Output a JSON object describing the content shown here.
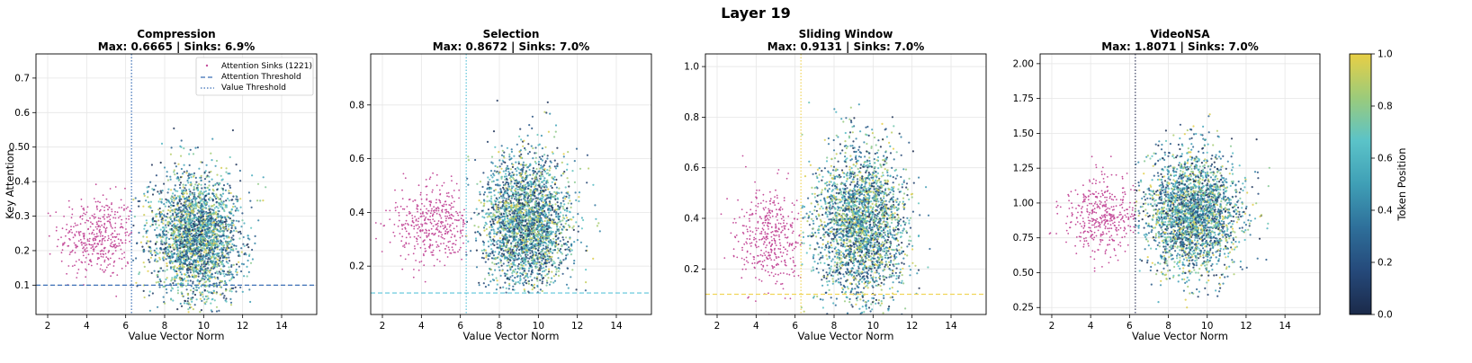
{
  "figure_title": "Layer 19",
  "chart_data": [
    {
      "type": "scatter",
      "title": "Compression",
      "subtitle": "Max: 0.6665 | Sinks: 6.9%",
      "xlabel": "Value Vector Norm",
      "ylabel": "Key Attention",
      "xlim": [
        1.4,
        15.8
      ],
      "ylim": [
        0.015,
        0.77
      ],
      "xticks": [
        2,
        4,
        6,
        8,
        10,
        12,
        14
      ],
      "yticks": [
        0.1,
        0.2,
        0.3,
        0.4,
        0.5,
        0.6,
        0.7
      ],
      "grid": true,
      "attention_threshold": 0.1,
      "value_threshold": 6.3,
      "threshold_color": "#3b6fb6",
      "sinks": {
        "x_range": [
          1.5,
          6.3
        ],
        "center": [
          4.6,
          0.24
        ],
        "spread": [
          1.0,
          0.06
        ],
        "color": "#c44d9a"
      },
      "cluster": {
        "center": [
          9.6,
          0.24
        ],
        "spread": [
          1.15,
          0.09
        ],
        "x_range": [
          6.3,
          13.2
        ],
        "y_range": [
          0.02,
          0.67
        ]
      },
      "legend": {
        "placement": "upper right",
        "entries": [
          "Attention Sinks (1221)",
          "Attention Threshold",
          "Value Threshold"
        ]
      }
    },
    {
      "type": "scatter",
      "title": "Selection",
      "subtitle": "Max: 0.8672 | Sinks: 7.0%",
      "xlabel": "Value Vector Norm",
      "ylabel": "",
      "xlim": [
        1.4,
        15.8
      ],
      "ylim": [
        0.02,
        0.99
      ],
      "xticks": [
        2,
        4,
        6,
        8,
        10,
        12,
        14
      ],
      "yticks": [
        0.2,
        0.4,
        0.6,
        0.8
      ],
      "grid": true,
      "attention_threshold": 0.1,
      "value_threshold": 6.3,
      "threshold_color": "#5bc3d9",
      "sinks": {
        "x_range": [
          1.5,
          6.3
        ],
        "center": [
          4.6,
          0.36
        ],
        "spread": [
          1.0,
          0.07
        ],
        "color": "#c44d9a"
      },
      "cluster": {
        "center": [
          9.4,
          0.36
        ],
        "spread": [
          1.1,
          0.13
        ],
        "x_range": [
          6.3,
          13.3
        ],
        "y_range": [
          0.1,
          0.87
        ]
      }
    },
    {
      "type": "scatter",
      "title": "Sliding Window",
      "subtitle": "Max: 0.9131 | Sinks: 7.0%",
      "xlabel": "Value Vector Norm",
      "ylabel": "",
      "xlim": [
        1.4,
        15.8
      ],
      "ylim": [
        0.02,
        1.05
      ],
      "xticks": [
        2,
        4,
        6,
        8,
        10,
        12,
        14
      ],
      "yticks": [
        0.2,
        0.4,
        0.6,
        0.8,
        1.0
      ],
      "grid": true,
      "attention_threshold": 0.1,
      "value_threshold": 6.3,
      "threshold_color": "#f0d55a",
      "sinks": {
        "x_range": [
          1.5,
          6.3
        ],
        "center": [
          4.8,
          0.32
        ],
        "spread": [
          0.9,
          0.1
        ],
        "color": "#c44d9a"
      },
      "cluster": {
        "center": [
          9.3,
          0.38
        ],
        "spread": [
          1.2,
          0.15
        ],
        "x_range": [
          6.3,
          13.0
        ],
        "y_range": [
          0.02,
          0.92
        ]
      }
    },
    {
      "type": "scatter",
      "title": "VideoNSA",
      "subtitle": "Max: 1.8071 | Sinks: 7.0%",
      "xlabel": "Value Vector Norm",
      "ylabel": "",
      "xlim": [
        1.4,
        15.8
      ],
      "ylim": [
        0.2,
        2.07
      ],
      "xticks": [
        2,
        4,
        6,
        8,
        10,
        12,
        14
      ],
      "yticks": [
        0.25,
        0.5,
        0.75,
        1.0,
        1.25,
        1.5,
        1.75,
        2.0
      ],
      "grid": true,
      "attention_threshold": null,
      "value_threshold": 6.3,
      "threshold_color": "#3a4060",
      "sinks": {
        "x_range": [
          1.5,
          6.3
        ],
        "center": [
          4.6,
          0.9
        ],
        "spread": [
          1.0,
          0.14
        ],
        "color": "#c44d9a"
      },
      "cluster": {
        "center": [
          9.3,
          0.92
        ],
        "spread": [
          1.2,
          0.22
        ],
        "x_range": [
          6.3,
          13.2
        ],
        "y_range": [
          0.25,
          1.82
        ]
      }
    }
  ],
  "colorbar": {
    "label": "Token Position",
    "ticks": [
      0.0,
      0.2,
      0.4,
      0.6,
      0.8,
      1.0
    ],
    "colormap": [
      "#1b2a4a",
      "#25497a",
      "#2e6f9a",
      "#3f9fb6",
      "#5bc3c8",
      "#9ccb7a",
      "#e8cf45"
    ]
  }
}
